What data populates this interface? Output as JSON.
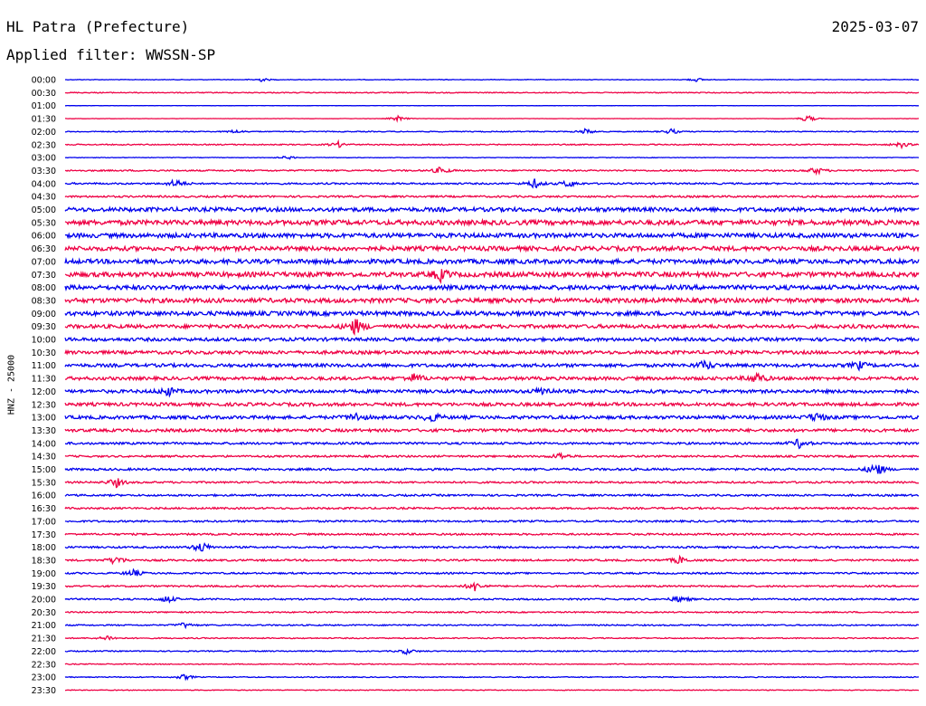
{
  "header": {
    "station": "HL Patra (Prefecture)",
    "date": "2025-03-07",
    "filter": "Applied filter: WWSSN-SP"
  },
  "chart_data": {
    "type": "line",
    "subtype": "helicorder",
    "ylabel": "HNZ - 25000",
    "rows": [
      "00:00",
      "00:30",
      "01:00",
      "01:30",
      "02:00",
      "02:30",
      "03:00",
      "03:30",
      "04:00",
      "04:30",
      "05:00",
      "05:30",
      "06:00",
      "06:30",
      "07:00",
      "07:30",
      "08:00",
      "08:30",
      "09:00",
      "09:30",
      "10:00",
      "10:30",
      "11:00",
      "11:30",
      "12:00",
      "12:30",
      "13:00",
      "13:30",
      "14:00",
      "14:30",
      "15:00",
      "15:30",
      "16:00",
      "16:30",
      "17:00",
      "17:30",
      "18:00",
      "18:30",
      "19:00",
      "19:30",
      "20:00",
      "20:30",
      "21:00",
      "21:30",
      "22:00",
      "22:30",
      "23:00",
      "23:30"
    ],
    "colors": [
      "#0000ee",
      "#ee0044"
    ],
    "noise_level": [
      0.3,
      0.5,
      0.15,
      0.2,
      0.5,
      0.6,
      0.3,
      0.8,
      0.9,
      1.0,
      2.2,
      2.6,
      2.4,
      2.4,
      2.4,
      2.6,
      2.4,
      2.4,
      2.3,
      2.0,
      1.8,
      1.8,
      1.8,
      1.8,
      1.8,
      1.8,
      1.8,
      1.6,
      1.2,
      1.0,
      1.2,
      1.0,
      1.0,
      1.0,
      1.0,
      1.0,
      1.0,
      1.0,
      0.9,
      0.9,
      0.9,
      0.7,
      0.7,
      0.6,
      0.6,
      0.5,
      0.5,
      0.4
    ],
    "events": [
      {
        "row": 0,
        "t": 0.23,
        "a": 2
      },
      {
        "row": 0,
        "t": 0.74,
        "a": 2
      },
      {
        "row": 3,
        "t": 0.39,
        "a": 3
      },
      {
        "row": 3,
        "t": 0.87,
        "a": 4
      },
      {
        "row": 4,
        "t": 0.61,
        "a": 3
      },
      {
        "row": 4,
        "t": 0.71,
        "a": 3
      },
      {
        "row": 4,
        "t": 0.2,
        "a": 2
      },
      {
        "row": 5,
        "t": 0.32,
        "a": 3
      },
      {
        "row": 5,
        "t": 0.98,
        "a": 3
      },
      {
        "row": 6,
        "t": 0.26,
        "a": 2
      },
      {
        "row": 7,
        "t": 0.44,
        "a": 4
      },
      {
        "row": 7,
        "t": 0.88,
        "a": 4
      },
      {
        "row": 8,
        "t": 0.13,
        "a": 5
      },
      {
        "row": 8,
        "t": 0.55,
        "a": 5
      },
      {
        "row": 8,
        "t": 0.59,
        "a": 4
      },
      {
        "row": 15,
        "t": 0.44,
        "a": 6
      },
      {
        "row": 19,
        "t": 0.34,
        "a": 9
      },
      {
        "row": 22,
        "t": 0.75,
        "a": 5
      },
      {
        "row": 22,
        "t": 0.93,
        "a": 4
      },
      {
        "row": 23,
        "t": 0.41,
        "a": 5
      },
      {
        "row": 23,
        "t": 0.81,
        "a": 6
      },
      {
        "row": 24,
        "t": 0.12,
        "a": 5
      },
      {
        "row": 24,
        "t": 0.56,
        "a": 5
      },
      {
        "row": 26,
        "t": 0.34,
        "a": 5
      },
      {
        "row": 26,
        "t": 0.43,
        "a": 5
      },
      {
        "row": 26,
        "t": 0.88,
        "a": 5
      },
      {
        "row": 28,
        "t": 0.86,
        "a": 5
      },
      {
        "row": 29,
        "t": 0.58,
        "a": 4
      },
      {
        "row": 30,
        "t": 0.95,
        "a": 8
      },
      {
        "row": 31,
        "t": 0.06,
        "a": 5
      },
      {
        "row": 36,
        "t": 0.16,
        "a": 6
      },
      {
        "row": 37,
        "t": 0.06,
        "a": 5
      },
      {
        "row": 37,
        "t": 0.72,
        "a": 4
      },
      {
        "row": 38,
        "t": 0.08,
        "a": 4
      },
      {
        "row": 39,
        "t": 0.48,
        "a": 5
      },
      {
        "row": 40,
        "t": 0.12,
        "a": 4
      },
      {
        "row": 40,
        "t": 0.72,
        "a": 4
      },
      {
        "row": 42,
        "t": 0.14,
        "a": 3
      },
      {
        "row": 43,
        "t": 0.05,
        "a": 3
      },
      {
        "row": 44,
        "t": 0.4,
        "a": 3
      },
      {
        "row": 46,
        "t": 0.14,
        "a": 3
      }
    ]
  }
}
